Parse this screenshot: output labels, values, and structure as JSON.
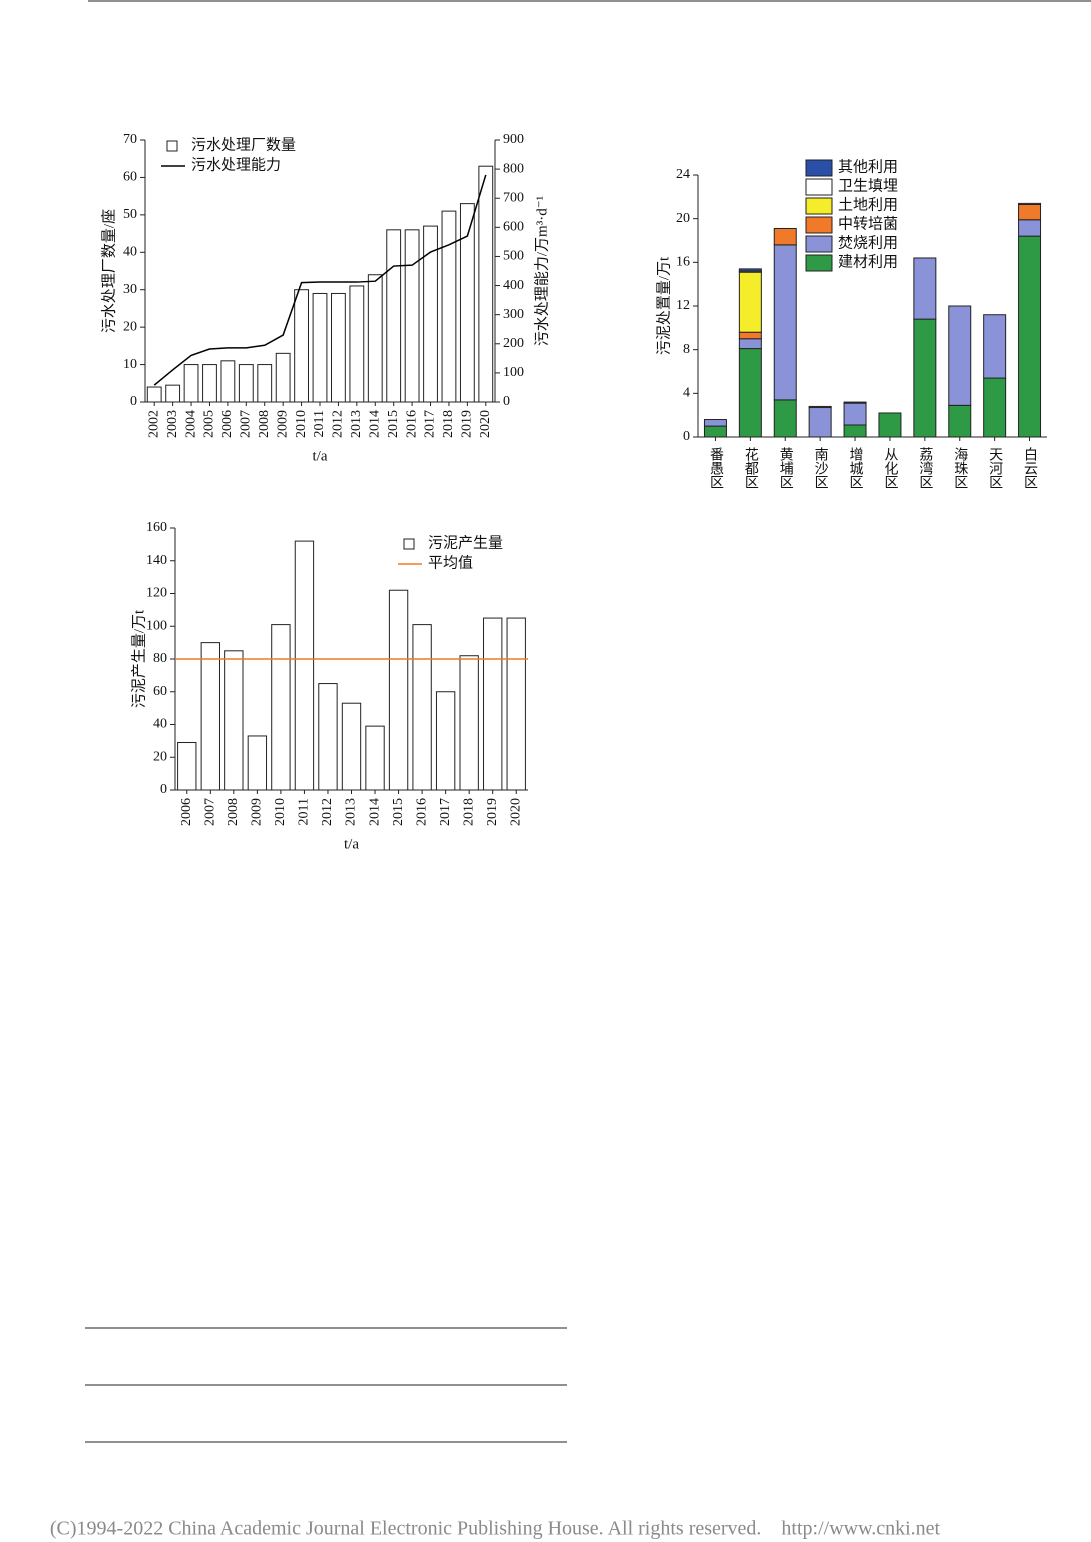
{
  "chart_data": [
    {
      "type": "bar",
      "categories": [
        "2002",
        "2003",
        "2004",
        "2005",
        "2006",
        "2007",
        "2008",
        "2009",
        "2010",
        "2011",
        "2012",
        "2013",
        "2014",
        "2015",
        "2016",
        "2017",
        "2018",
        "2019",
        "2020"
      ],
      "series": [
        {
          "name": "污水处理厂数量",
          "color": "#ffffff",
          "values": [
            4,
            4.5,
            10,
            10,
            11,
            10,
            10,
            13,
            30,
            29,
            29,
            31,
            34,
            46,
            46,
            47,
            51,
            53,
            63
          ]
        },
        {
          "name": "污水处理能力",
          "type": "line",
          "axis": "y2",
          "color": "#000000",
          "values": [
            58,
            110,
            160,
            182,
            186,
            186,
            195,
            230,
            410,
            412,
            412,
            412,
            415,
            467,
            470,
            515,
            540,
            570,
            780
          ]
        }
      ],
      "ylim": [
        0,
        70
      ],
      "yticks": [
        0,
        10,
        20,
        30,
        40,
        50,
        60,
        70
      ],
      "y2lim": [
        0,
        900
      ],
      "y2ticks": [
        0,
        100,
        200,
        300,
        400,
        500,
        600,
        700,
        800,
        900
      ],
      "x_label": "t/a",
      "y_label": "污水处理厂数量/座",
      "y2_label": "污水处理能力/万m³·d⁻¹"
    },
    {
      "type": "stacked_bar",
      "categories": [
        "番愚区",
        "花都区",
        "黄埔区",
        "南沙区",
        "增城区",
        "从化区",
        "荔湾区",
        "海珠区",
        "天河区",
        "白云区"
      ],
      "series": [
        {
          "name": "建材利用",
          "color": "#2e9a46",
          "values": [
            1.0,
            8.1,
            3.4,
            0,
            1.1,
            2.2,
            10.8,
            2.9,
            5.4,
            18.4
          ]
        },
        {
          "name": "焚烧利用",
          "color": "#8a93d8",
          "values": [
            0.6,
            0.9,
            14.2,
            2.7,
            2.0,
            0,
            5.6,
            9.1,
            5.8,
            1.5
          ]
        },
        {
          "name": "中转培菌",
          "color": "#f07a2a",
          "values": [
            0,
            0.6,
            1.5,
            0.1,
            0,
            0,
            0,
            0,
            0,
            1.4
          ]
        },
        {
          "name": "土地利用",
          "color": "#f5ec2a",
          "values": [
            0,
            5.5,
            0,
            0,
            0,
            0,
            0,
            0,
            0,
            0
          ]
        },
        {
          "name": "卫生填埋",
          "color": "#ffffff",
          "values": [
            0,
            0.1,
            0,
            0,
            0,
            0,
            0,
            0,
            0,
            0.1
          ]
        },
        {
          "name": "其他利用",
          "color": "#2a4fa8",
          "values": [
            0,
            0.2,
            0,
            0,
            0.1,
            0,
            0,
            0,
            0,
            0
          ]
        }
      ],
      "ylim": [
        0,
        24
      ],
      "yticks": [
        0,
        4,
        8,
        12,
        16,
        20,
        24
      ],
      "y_label": "污泥处置量/万t"
    },
    {
      "type": "bar",
      "categories": [
        "2006",
        "2007",
        "2008",
        "2009",
        "2010",
        "2011",
        "2012",
        "2013",
        "2014",
        "2015",
        "2016",
        "2017",
        "2018",
        "2019",
        "2020"
      ],
      "series": [
        {
          "name": "污泥产生量",
          "color": "#ffffff",
          "values": [
            29,
            90,
            85,
            33,
            101,
            152,
            65,
            53,
            39,
            122,
            101,
            60,
            82,
            105,
            105
          ]
        }
      ],
      "reference_lines": [
        {
          "name": "平均值",
          "value": 80,
          "color": "#f07a2a"
        }
      ],
      "ylim": [
        0,
        160
      ],
      "yticks": [
        0,
        20,
        40,
        60,
        80,
        100,
        120,
        140,
        160
      ],
      "x_label": "t/a",
      "y_label": "污泥产生量/万t"
    }
  ],
  "footer": "(C)1994-2022 China Academic Journal Electronic Publishing House. All rights reserved.    http://www.cnki.net"
}
